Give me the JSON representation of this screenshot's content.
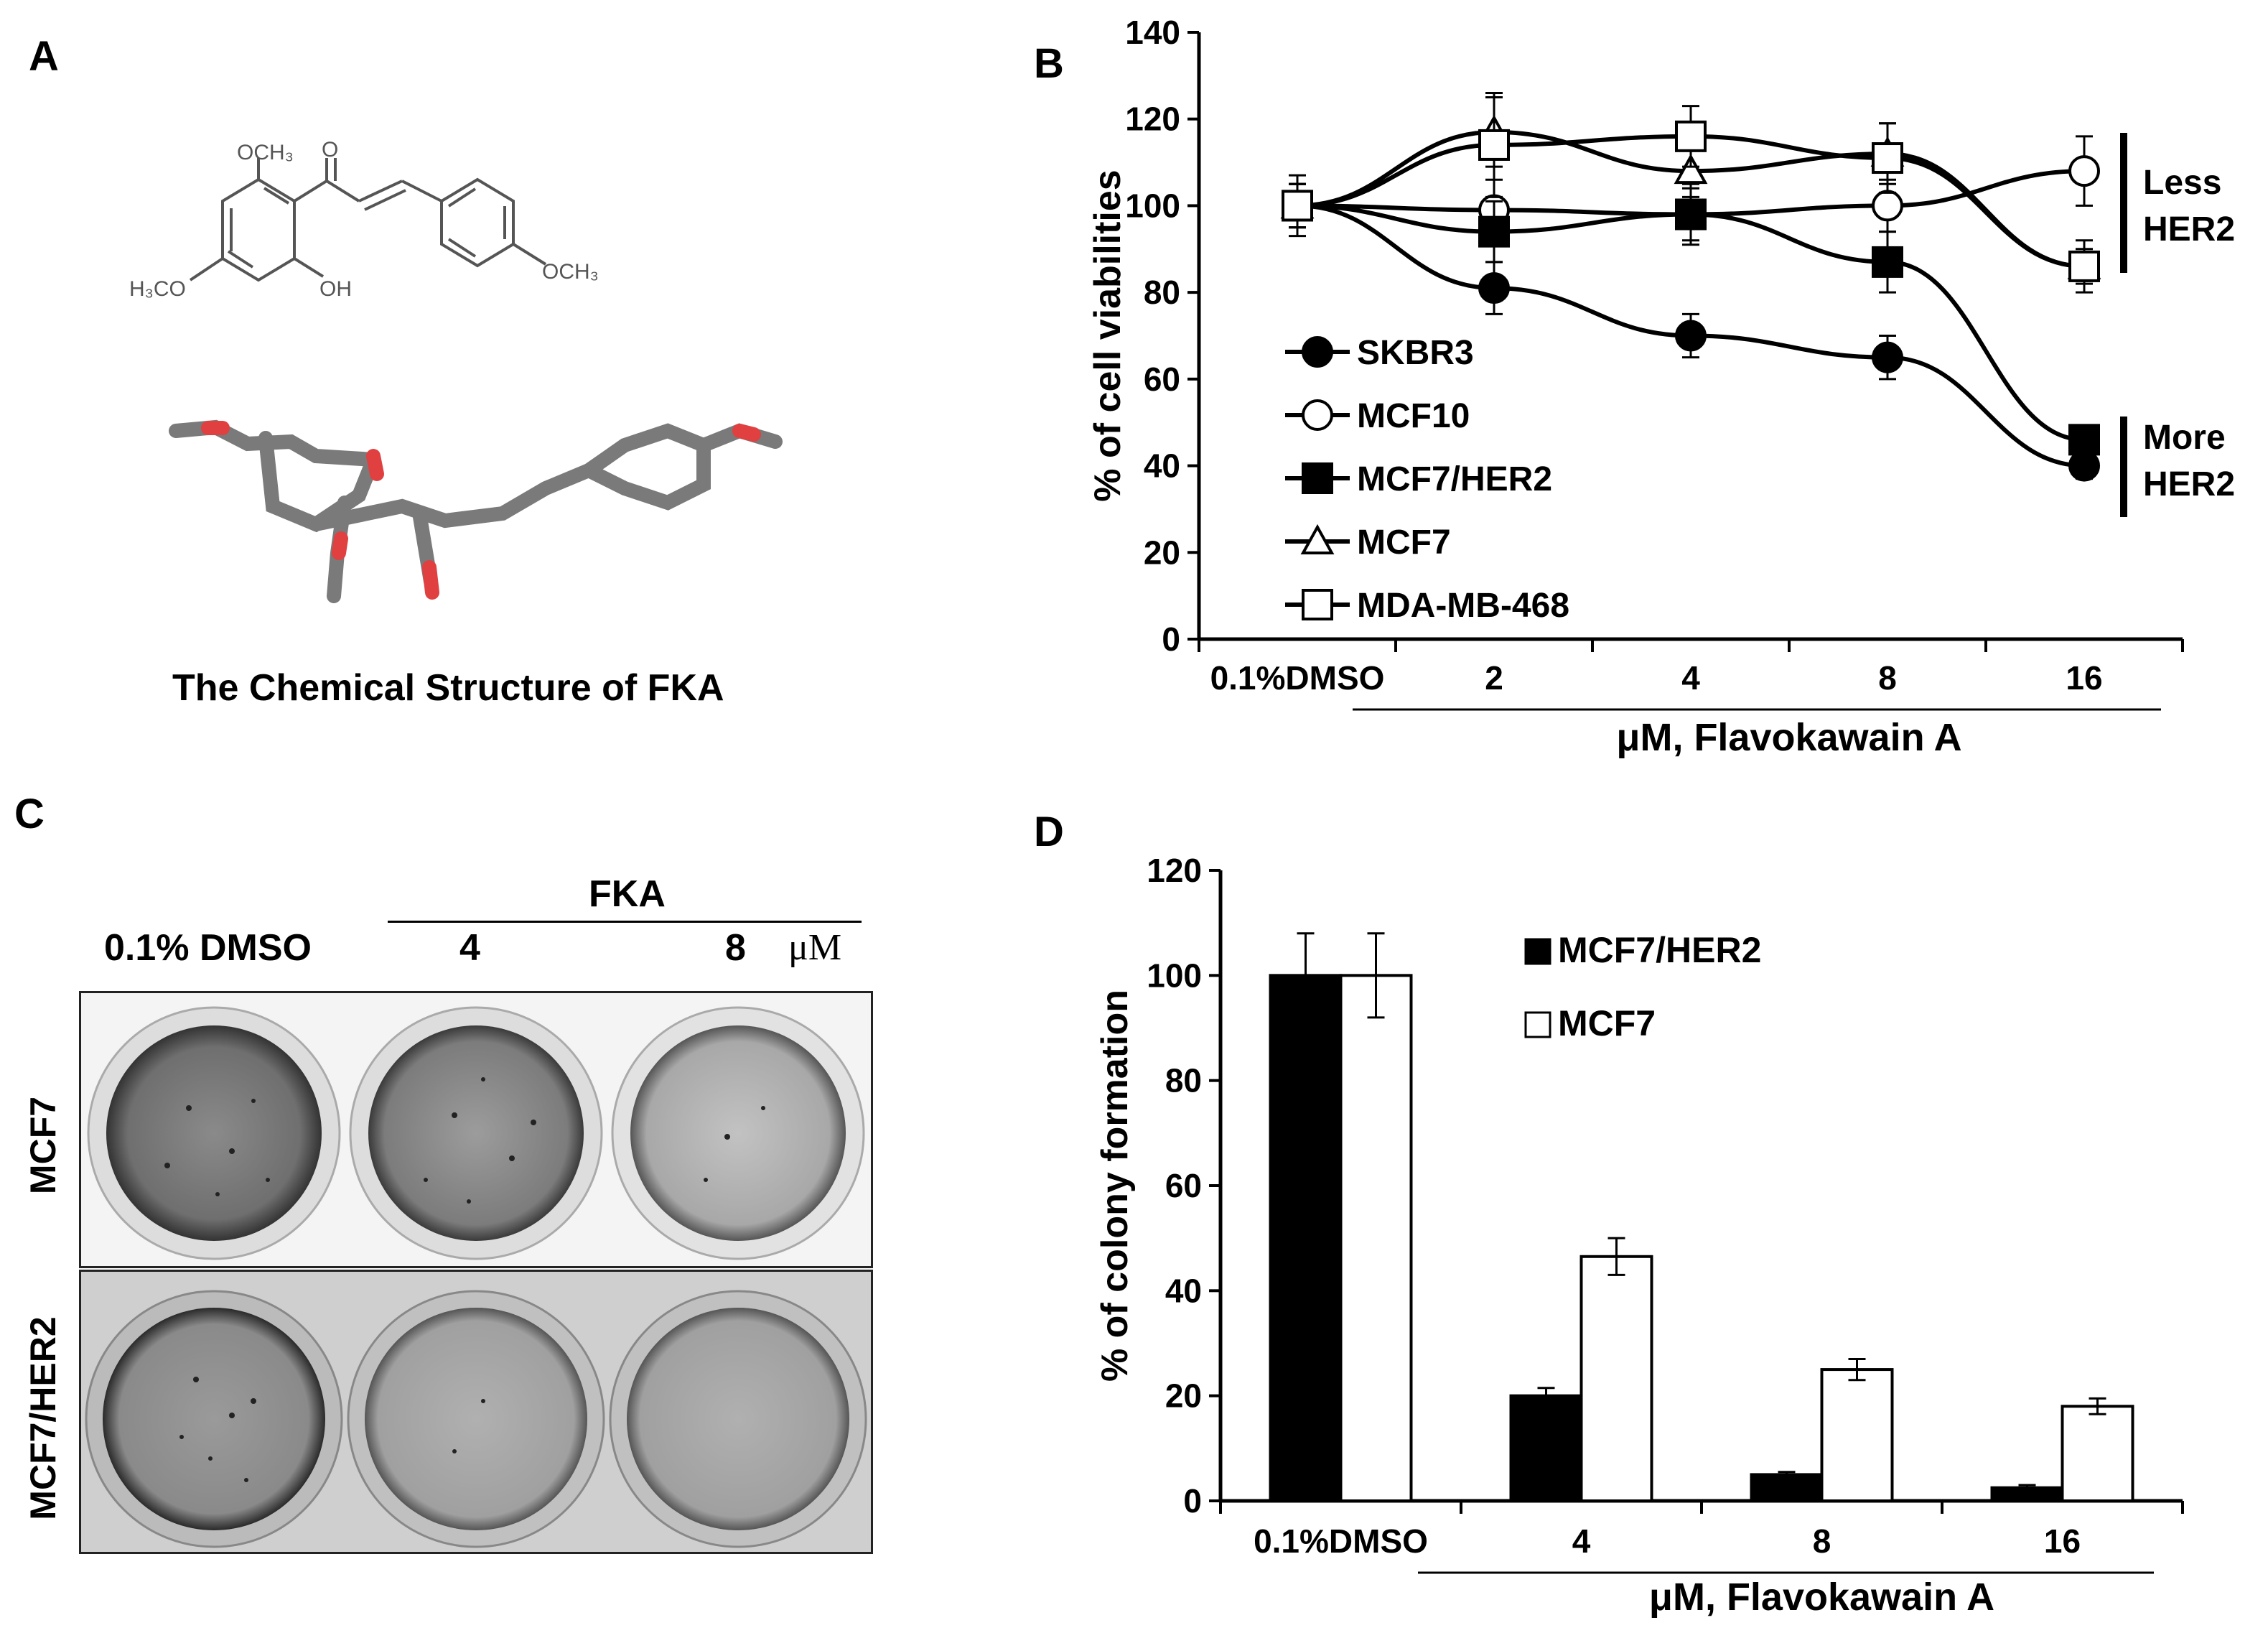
{
  "panels": {
    "a": {
      "label": "A",
      "caption": "The Chemical Structure of FKA",
      "atoms": {
        "ome_top": "OCH₃",
        "ketone_o": "O",
        "ome_left": "H₃CO",
        "oh": "OH",
        "ome_right": "OCH₃"
      }
    },
    "b": {
      "label": "B",
      "annotation_less": [
        "Less",
        "HER2"
      ],
      "annotation_more": [
        "More",
        "HER2"
      ],
      "group_label": "μM,  Flavokawain A"
    },
    "c": {
      "label": "C",
      "header_fka": "FKA",
      "header_dmso": "0.1% DMSO",
      "header_conc": [
        "4",
        "8"
      ],
      "unit": "μM",
      "row_labels": [
        "MCF7",
        "MCF7/HER2"
      ]
    },
    "d": {
      "label": "D",
      "group_label": "μM,  Flavokawain A"
    }
  },
  "chart_data": [
    {
      "panel": "B",
      "type": "line",
      "ylabel": "% of cell viabilities",
      "xlabel": "μM,  Flavokawain A",
      "categories": [
        "0.1%DMSO",
        "2",
        "4",
        "8",
        "16"
      ],
      "ylim": [
        0,
        140
      ],
      "yticks": [
        "0",
        "20",
        "40",
        "60",
        "80",
        "100",
        "120",
        "140"
      ],
      "legend_position": "bottom-left",
      "series": [
        {
          "name": "SKBR3",
          "marker": "filled-circle",
          "values": [
            100,
            81,
            70,
            65,
            40
          ],
          "errors": [
            5,
            6,
            5,
            5,
            3
          ]
        },
        {
          "name": "MCF10",
          "marker": "open-circle",
          "values": [
            100,
            99,
            98,
            100,
            108
          ],
          "errors": [
            5,
            7,
            6,
            6,
            8
          ]
        },
        {
          "name": "MCF7/HER2",
          "marker": "filled-square",
          "values": [
            100,
            94,
            98,
            87,
            46
          ],
          "errors": [
            7,
            7,
            7,
            7,
            3
          ]
        },
        {
          "name": "MCF7",
          "marker": "open-triangle",
          "values": [
            100,
            117,
            108,
            112,
            86
          ],
          "errors": [
            5,
            8,
            6,
            7,
            6
          ]
        },
        {
          "name": "MDA-MB-468",
          "marker": "open-square",
          "values": [
            100,
            114,
            116,
            111,
            86
          ],
          "errors": [
            5,
            12,
            7,
            8,
            4
          ]
        }
      ]
    },
    {
      "panel": "D",
      "type": "bar",
      "ylabel": "% of colony formation",
      "xlabel": "μM,  Flavokawain A",
      "categories": [
        "0.1%DMSO",
        "4",
        "8",
        "16"
      ],
      "ylim": [
        0,
        120
      ],
      "yticks": [
        "0",
        "20",
        "40",
        "60",
        "80",
        "100",
        "120"
      ],
      "legend_position": "top-right",
      "series": [
        {
          "name": "MCF7/HER2",
          "fill": "#000000",
          "values": [
            100,
            20,
            5,
            2.5
          ],
          "errors": [
            8,
            1.5,
            0.5,
            0.5
          ]
        },
        {
          "name": "MCF7",
          "fill": "#ffffff",
          "values": [
            100,
            46.5,
            25,
            18
          ],
          "errors": [
            8,
            3.5,
            2,
            1.5
          ]
        }
      ]
    }
  ]
}
